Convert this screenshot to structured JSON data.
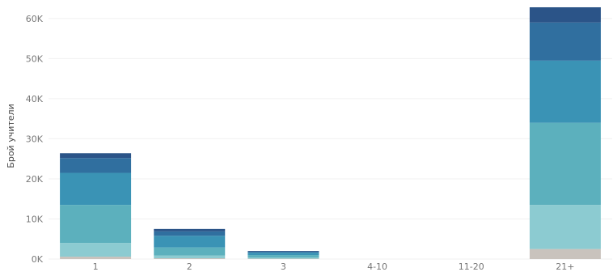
{
  "chart_data": {
    "type": "bar",
    "stacked": true,
    "ylabel": "Брой учители",
    "xlabel": "",
    "categories": [
      "1",
      "2",
      "3",
      "4-10",
      "11-20",
      "21+"
    ],
    "ylim": [
      0,
      63000
    ],
    "yticks": [
      0,
      10000,
      20000,
      30000,
      40000,
      50000,
      60000
    ],
    "ytick_labels": [
      "0K",
      "10K",
      "20K",
      "30K",
      "40K",
      "50K",
      "60K"
    ],
    "grid": true,
    "legend": "none",
    "series": [
      {
        "color": "#c9c3bd",
        "values": [
          600,
          200,
          100,
          0,
          0,
          2500
        ]
      },
      {
        "color": "#8ccbd1",
        "values": [
          3400,
          700,
          300,
          0,
          0,
          11000
        ]
      },
      {
        "color": "#5cb0bd",
        "values": [
          9500,
          2000,
          600,
          0,
          0,
          20500
        ]
      },
      {
        "color": "#3a93b5",
        "values": [
          8000,
          2900,
          600,
          0,
          0,
          15500
        ]
      },
      {
        "color": "#306f9f",
        "values": [
          3700,
          1100,
          200,
          0,
          0,
          9500
        ]
      },
      {
        "color": "#2b5488",
        "values": [
          1200,
          600,
          200,
          0,
          0,
          3800
        ]
      }
    ]
  }
}
